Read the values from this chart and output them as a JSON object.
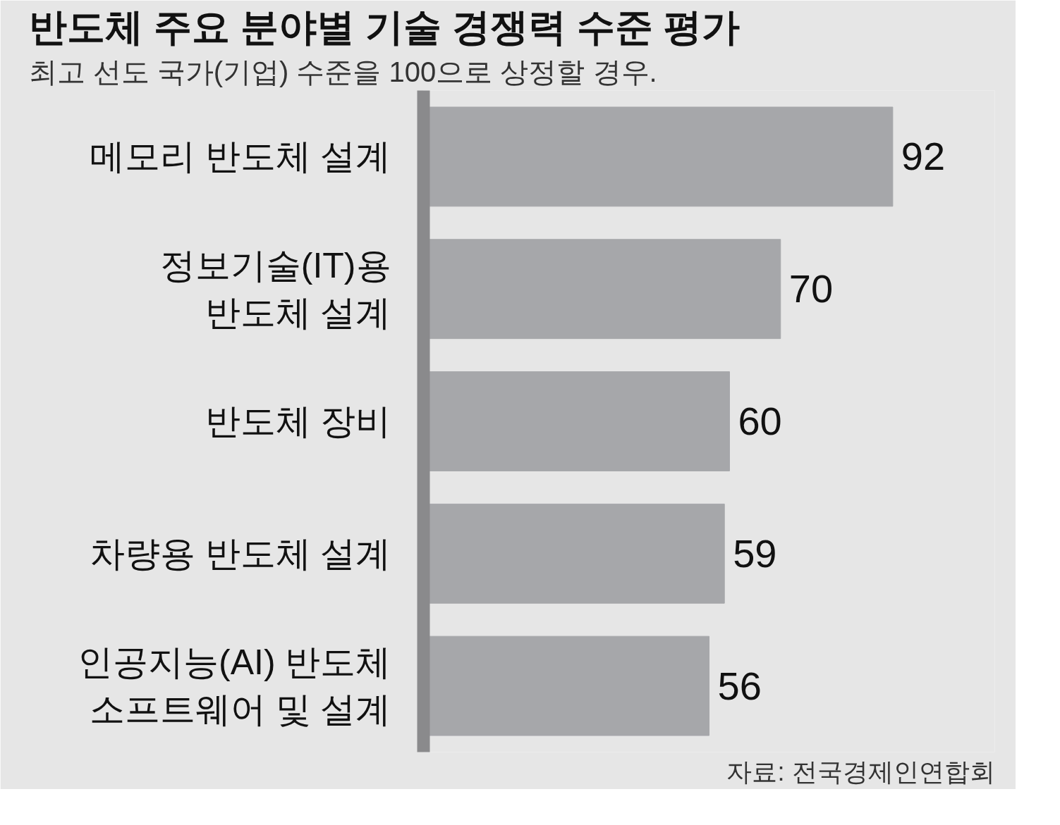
{
  "chart_data": {
    "type": "bar",
    "orientation": "horizontal",
    "title": "반도체 주요 분야별 기술 경쟁력 수준 평가",
    "subtitle": "최고 선도 국가(기업) 수준을 100으로 상정할 경우.",
    "categories": [
      "메모리 반도체 설계",
      "정보기술(IT)용\n반도체 설계",
      "반도체 장비",
      "차량용 반도체 설계",
      "인공지능(AI) 반도체\n소프트웨어 및 설계"
    ],
    "values": [
      92,
      70,
      60,
      59,
      56
    ],
    "color": "#a6a7aa",
    "xlim": [
      0,
      112
    ],
    "data_labels": true,
    "tick_labels": "y",
    "annotations": [
      "자료: 전국경제인연합회"
    ]
  }
}
